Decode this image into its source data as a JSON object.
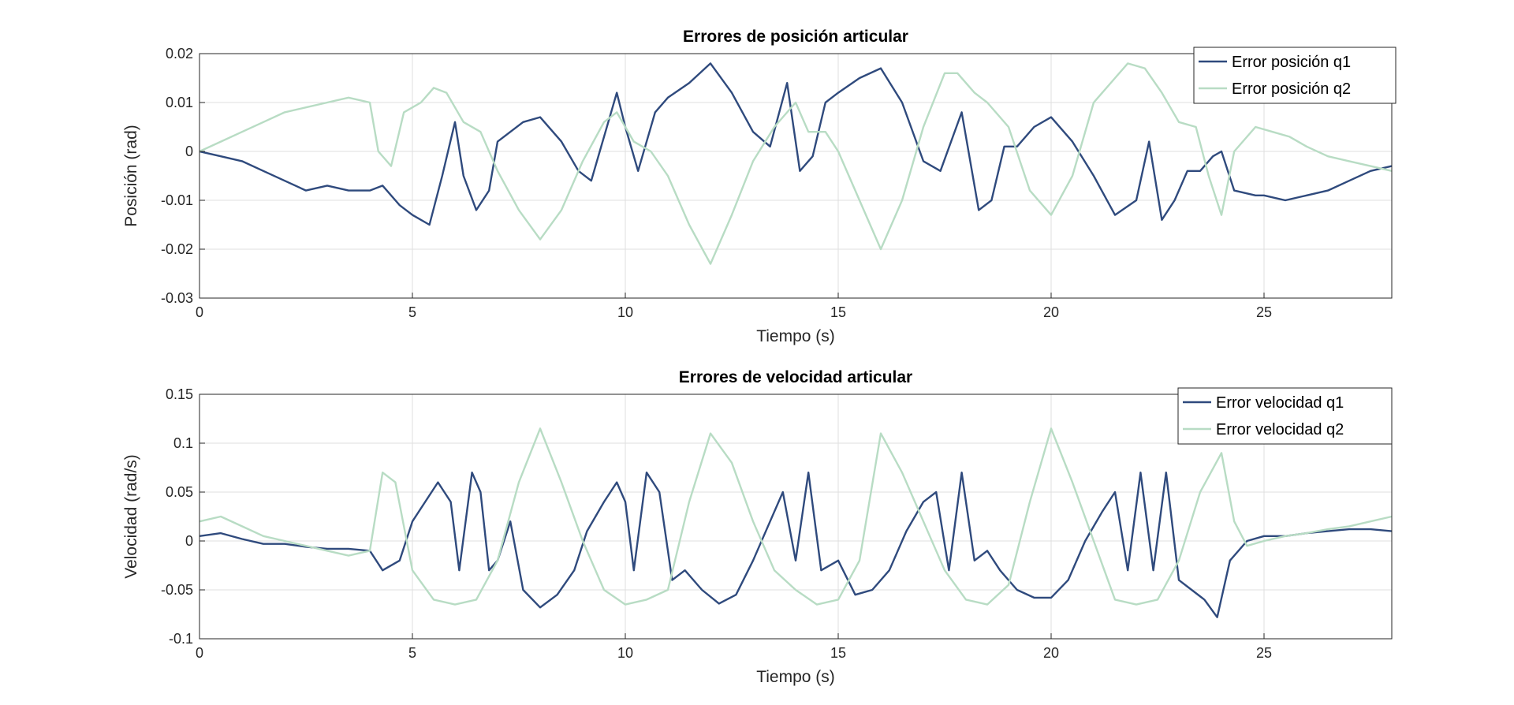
{
  "chart_data": [
    {
      "type": "line",
      "title": "Errores de posición articular",
      "xlabel": "Tiempo (s)",
      "ylabel": "Posición (rad)",
      "xlim": [
        0,
        28
      ],
      "ylim": [
        -0.03,
        0.02
      ],
      "xticks": [
        0,
        5,
        10,
        15,
        20,
        25
      ],
      "xtick_labels": [
        "0",
        "5",
        "10",
        "15",
        "20",
        "25"
      ],
      "yticks": [
        -0.03,
        -0.02,
        -0.01,
        0,
        0.01,
        0.02
      ],
      "ytick_labels": [
        "-0.03",
        "-0.02",
        "-0.01",
        "0",
        "0.01",
        "0.02"
      ],
      "grid": true,
      "legend": "top-right",
      "series": [
        {
          "name": "Error posición q1",
          "color": "#2f4a7d",
          "x": [
            0,
            0.5,
            1,
            1.5,
            2,
            2.5,
            3,
            3.5,
            4,
            4.3,
            4.7,
            5,
            5.4,
            5.7,
            6,
            6.2,
            6.5,
            6.8,
            7,
            7.3,
            7.6,
            8,
            8.5,
            8.9,
            9.2,
            9.5,
            9.8,
            10,
            10.3,
            10.7,
            11,
            11.5,
            12,
            12.5,
            13,
            13.4,
            13.8,
            14.1,
            14.4,
            14.7,
            15,
            15.5,
            16,
            16.5,
            17,
            17.4,
            17.9,
            18.3,
            18.6,
            18.9,
            19.2,
            19.6,
            20,
            20.5,
            21,
            21.5,
            22,
            22.3,
            22.6,
            22.9,
            23.2,
            23.5,
            23.8,
            24,
            24.3,
            24.8,
            25,
            25.5,
            26,
            26.5,
            27,
            27.5,
            28
          ],
          "y": [
            0,
            -0.001,
            -0.002,
            -0.004,
            -0.006,
            -0.008,
            -0.007,
            -0.008,
            -0.008,
            -0.007,
            -0.011,
            -0.013,
            -0.015,
            -0.005,
            0.006,
            -0.005,
            -0.012,
            -0.008,
            0.002,
            0.004,
            0.006,
            0.007,
            0.002,
            -0.004,
            -0.006,
            0.003,
            0.012,
            0.005,
            -0.004,
            0.008,
            0.011,
            0.014,
            0.018,
            0.012,
            0.004,
            0.001,
            0.014,
            -0.004,
            -0.001,
            0.01,
            0.012,
            0.015,
            0.017,
            0.01,
            -0.002,
            -0.004,
            0.008,
            -0.012,
            -0.01,
            0.001,
            0.001,
            0.005,
            0.007,
            0.002,
            -0.005,
            -0.013,
            -0.01,
            0.002,
            -0.014,
            -0.01,
            -0.004,
            -0.004,
            -0.001,
            0.0,
            -0.008,
            -0.009,
            -0.009,
            -0.01,
            -0.009,
            -0.008,
            -0.006,
            -0.004,
            -0.003
          ]
        },
        {
          "name": "Error posición q2",
          "color": "#b8dcc4",
          "x": [
            0,
            0.5,
            1,
            1.5,
            2,
            2.5,
            3,
            3.5,
            4,
            4.2,
            4.5,
            4.8,
            5.2,
            5.5,
            5.8,
            6.2,
            6.6,
            7,
            7.5,
            8,
            8.5,
            9,
            9.5,
            9.8,
            10.2,
            10.6,
            11,
            11.5,
            12,
            12.5,
            13,
            13.5,
            14,
            14.3,
            14.7,
            15,
            15.5,
            16,
            16.5,
            17,
            17.5,
            17.8,
            18.2,
            18.5,
            19,
            19.5,
            20,
            20.5,
            21,
            21.5,
            21.8,
            22.2,
            22.6,
            23,
            23.4,
            23.7,
            24,
            24.3,
            24.8,
            25.2,
            25.6,
            26,
            26.5,
            27,
            27.5,
            28
          ],
          "y": [
            0,
            0.002,
            0.004,
            0.006,
            0.008,
            0.009,
            0.01,
            0.011,
            0.01,
            0.0,
            -0.003,
            0.008,
            0.01,
            0.013,
            0.012,
            0.006,
            0.004,
            -0.004,
            -0.012,
            -0.018,
            -0.012,
            -0.002,
            0.006,
            0.008,
            0.002,
            0.0,
            -0.005,
            -0.015,
            -0.023,
            -0.013,
            -0.002,
            0.005,
            0.01,
            0.004,
            0.004,
            0.0,
            -0.01,
            -0.02,
            -0.01,
            0.005,
            0.016,
            0.016,
            0.012,
            0.01,
            0.005,
            -0.008,
            -0.013,
            -0.005,
            0.01,
            0.015,
            0.018,
            0.017,
            0.012,
            0.006,
            0.005,
            -0.005,
            -0.013,
            0.0,
            0.005,
            0.004,
            0.003,
            0.001,
            -0.001,
            -0.002,
            -0.003,
            -0.004
          ]
        }
      ]
    },
    {
      "type": "line",
      "title": "Errores de velocidad articular",
      "xlabel": "Tiempo (s)",
      "ylabel": "Velocidad (rad/s)",
      "xlim": [
        0,
        28
      ],
      "ylim": [
        -0.1,
        0.15
      ],
      "xticks": [
        0,
        5,
        10,
        15,
        20,
        25
      ],
      "xtick_labels": [
        "0",
        "5",
        "10",
        "15",
        "20",
        "25"
      ],
      "yticks": [
        -0.1,
        -0.05,
        0,
        0.05,
        0.1,
        0.15
      ],
      "ytick_labels": [
        "-0.1",
        "-0.05",
        "0",
        "0.05",
        "0.1",
        "0.15"
      ],
      "grid": true,
      "legend": "top-right",
      "series": [
        {
          "name": "Error velocidad q1",
          "color": "#2f4a7d",
          "x": [
            0,
            0.5,
            1,
            1.5,
            2,
            2.5,
            3,
            3.5,
            4,
            4.3,
            4.7,
            5,
            5.3,
            5.6,
            5.9,
            6.1,
            6.4,
            6.6,
            6.8,
            7,
            7.3,
            7.6,
            8,
            8.4,
            8.8,
            9.1,
            9.5,
            9.8,
            10,
            10.2,
            10.5,
            10.8,
            11.1,
            11.4,
            11.8,
            12.2,
            12.6,
            13,
            13.4,
            13.7,
            14,
            14.3,
            14.6,
            15,
            15.4,
            15.8,
            16.2,
            16.6,
            17,
            17.3,
            17.6,
            17.9,
            18.2,
            18.5,
            18.8,
            19.2,
            19.6,
            20,
            20.4,
            20.8,
            21.2,
            21.5,
            21.8,
            22.1,
            22.4,
            22.7,
            23,
            23.3,
            23.6,
            23.9,
            24.2,
            24.6,
            25,
            25.5,
            26,
            26.5,
            27,
            27.5,
            28
          ],
          "y": [
            0.005,
            0.008,
            0.002,
            -0.003,
            -0.003,
            -0.006,
            -0.008,
            -0.008,
            -0.01,
            -0.03,
            -0.02,
            0.02,
            0.04,
            0.06,
            0.04,
            -0.03,
            0.07,
            0.05,
            -0.03,
            -0.02,
            0.02,
            -0.05,
            -0.068,
            -0.055,
            -0.03,
            0.01,
            0.04,
            0.06,
            0.04,
            -0.03,
            0.07,
            0.05,
            -0.04,
            -0.03,
            -0.05,
            -0.064,
            -0.055,
            -0.02,
            0.02,
            0.05,
            -0.02,
            0.07,
            -0.03,
            -0.02,
            -0.055,
            -0.05,
            -0.03,
            0.01,
            0.04,
            0.05,
            -0.03,
            0.07,
            -0.02,
            -0.01,
            -0.03,
            -0.05,
            -0.058,
            -0.058,
            -0.04,
            0.0,
            0.03,
            0.05,
            -0.03,
            0.07,
            -0.03,
            0.07,
            -0.04,
            -0.05,
            -0.06,
            -0.078,
            -0.02,
            0.0,
            0.005,
            0.005,
            0.008,
            0.01,
            0.012,
            0.012,
            0.01
          ]
        },
        {
          "name": "Error velocidad q2",
          "color": "#b8dcc4",
          "x": [
            0,
            0.5,
            1,
            1.5,
            2,
            2.5,
            3,
            3.5,
            4,
            4.3,
            4.6,
            5,
            5.5,
            6,
            6.5,
            7,
            7.5,
            8,
            8.5,
            9,
            9.5,
            10,
            10.5,
            11,
            11.5,
            12,
            12.5,
            13,
            13.5,
            14,
            14.5,
            15,
            15.5,
            16,
            16.5,
            17,
            17.5,
            18,
            18.5,
            19,
            19.5,
            20,
            20.5,
            21,
            21.5,
            22,
            22.5,
            23,
            23.5,
            24,
            24.3,
            24.6,
            25,
            25.5,
            26,
            26.5,
            27,
            27.5,
            28
          ],
          "y": [
            0.02,
            0.025,
            0.015,
            0.005,
            0.0,
            -0.005,
            -0.01,
            -0.015,
            -0.01,
            0.07,
            0.06,
            -0.03,
            -0.06,
            -0.065,
            -0.06,
            -0.02,
            0.06,
            0.115,
            0.06,
            0.0,
            -0.05,
            -0.065,
            -0.06,
            -0.05,
            0.04,
            0.11,
            0.08,
            0.02,
            -0.03,
            -0.05,
            -0.065,
            -0.06,
            -0.02,
            0.11,
            0.07,
            0.02,
            -0.03,
            -0.06,
            -0.065,
            -0.045,
            0.04,
            0.115,
            0.06,
            0.0,
            -0.06,
            -0.065,
            -0.06,
            -0.02,
            0.05,
            0.09,
            0.02,
            -0.005,
            0.0,
            0.005,
            0.008,
            0.012,
            0.015,
            0.02,
            0.025
          ]
        }
      ]
    }
  ]
}
